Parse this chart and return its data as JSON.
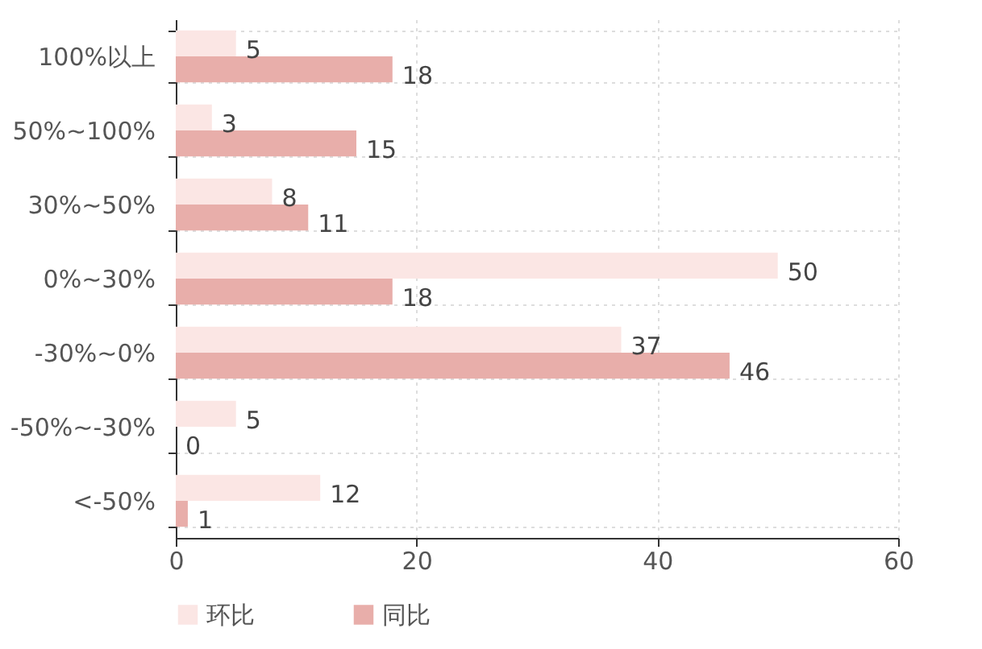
{
  "chart_data": {
    "type": "bar",
    "orientation": "horizontal",
    "categories": [
      "100%以上",
      "50%~100%",
      "30%~50%",
      "0%~30%",
      "-30%~0%",
      "-50%~-30%",
      "<-50%"
    ],
    "series": [
      {
        "name": "环比",
        "color": "#fbe6e4",
        "values": [
          5,
          3,
          8,
          50,
          37,
          5,
          12
        ]
      },
      {
        "name": "同比",
        "color": "#e8aeaa",
        "values": [
          18,
          15,
          11,
          18,
          46,
          0,
          1
        ]
      }
    ],
    "xlim": [
      0,
      60
    ],
    "xticks": [
      0,
      20,
      40,
      60
    ],
    "grid": true,
    "legend": "bottom",
    "data_labels": true
  }
}
